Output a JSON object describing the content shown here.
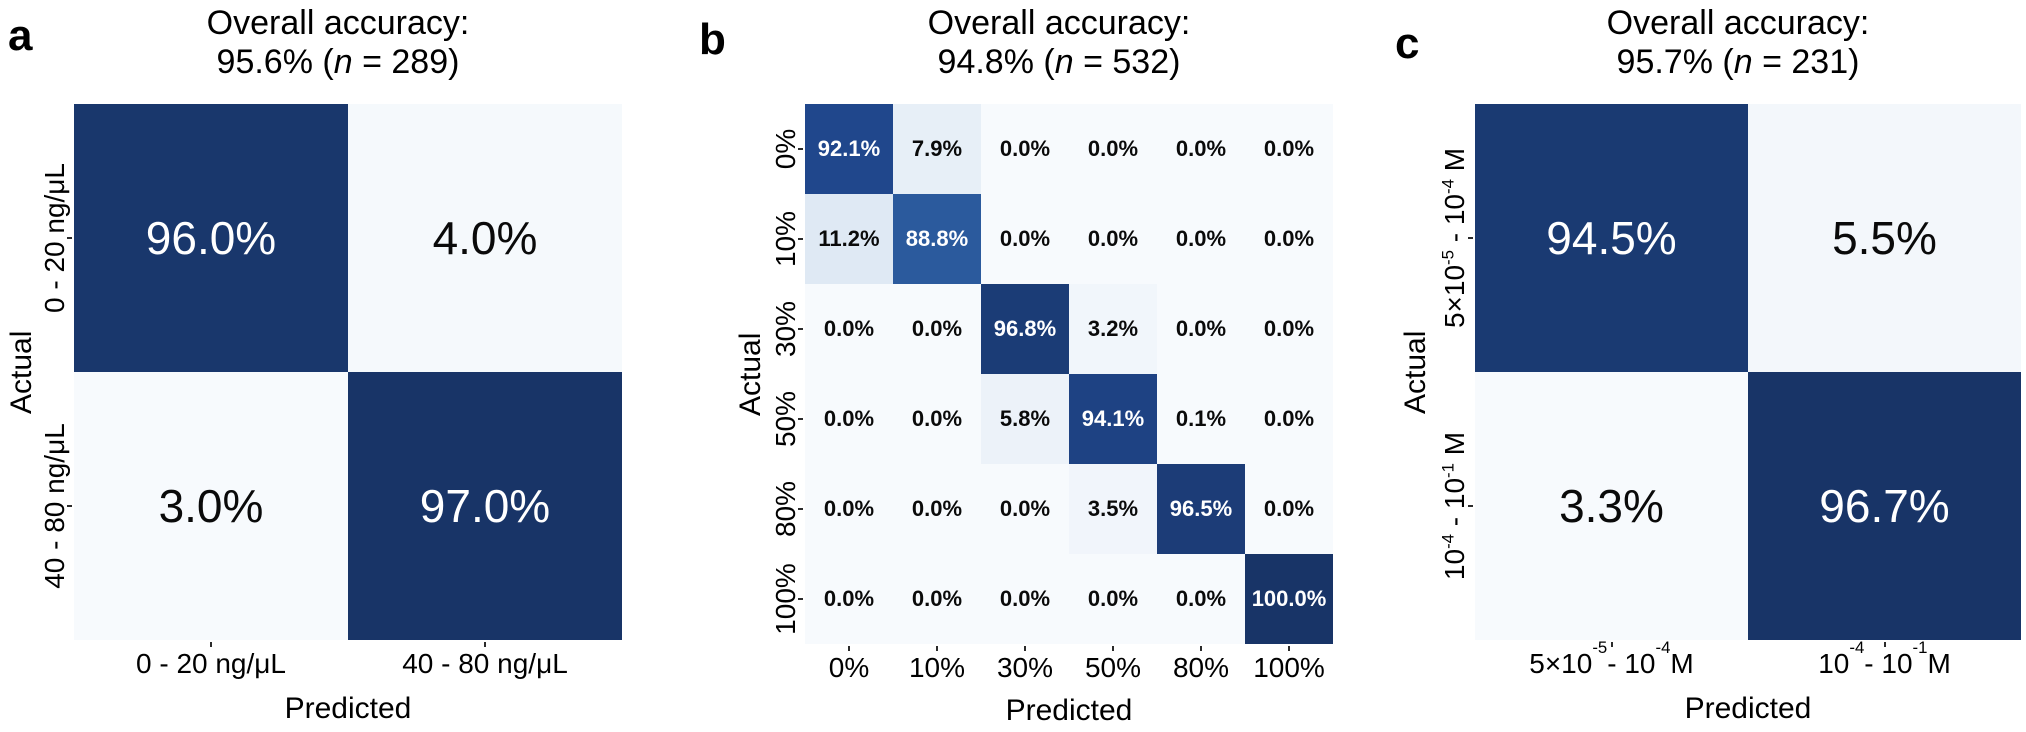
{
  "figure": {
    "kind": "confusion-matrix-figure",
    "background": "#ffffff",
    "axis_text_color": "#000000",
    "tick_color": "#2b2b2b",
    "value_text_light": "#ffffff",
    "value_text_dark": "#0a0a0a",
    "colormap_stops": [
      [
        0.0,
        "#f7fafd"
      ],
      [
        0.06,
        "#ecf2f9"
      ],
      [
        0.112,
        "#dfe9f4"
      ],
      [
        0.5,
        "#6fa0ce"
      ],
      [
        0.888,
        "#2b5a9d"
      ],
      [
        0.921,
        "#20478c"
      ],
      [
        1.0,
        "#183467"
      ]
    ]
  },
  "chart_data": [
    {
      "type": "heatmap",
      "panel_label": "a",
      "title": "Overall accuracy: 95.6% (n = 289)",
      "overall_accuracy": "95.6%",
      "n": 289,
      "title_lines": {
        "line1": "Overall accuracy:",
        "line2_pre": "95.6% (",
        "line2_italic": "n",
        "line2_post": " = 289)"
      },
      "xlabel": "Predicted",
      "ylabel": "Actual",
      "categories": [
        "0 - 20 ng/μL",
        "40 - 80 ng/μL"
      ],
      "matrix_percent": [
        [
          96.0,
          4.0
        ],
        [
          3.0,
          97.0
        ]
      ],
      "color_domain": [
        3.0,
        97.0
      ],
      "value_bold": false
    },
    {
      "type": "heatmap",
      "panel_label": "b",
      "title": "Overall accuracy: 94.8% (n = 532)",
      "overall_accuracy": "94.8%",
      "n": 532,
      "title_lines": {
        "line1": "Overall accuracy:",
        "line2_pre": "94.8% (",
        "line2_italic": "n",
        "line2_post": " = 532)"
      },
      "xlabel": "Predicted",
      "ylabel": "Actual",
      "categories": [
        "0%",
        "10%",
        "30%",
        "50%",
        "80%",
        "100%"
      ],
      "matrix_percent": [
        [
          92.1,
          7.9,
          0.0,
          0.0,
          0.0,
          0.0
        ],
        [
          11.2,
          88.8,
          0.0,
          0.0,
          0.0,
          0.0
        ],
        [
          0.0,
          0.0,
          96.8,
          3.2,
          0.0,
          0.0
        ],
        [
          0.0,
          0.0,
          5.8,
          94.1,
          0.1,
          0.0
        ],
        [
          0.0,
          0.0,
          0.0,
          3.5,
          96.5,
          0.0
        ],
        [
          0.0,
          0.0,
          0.0,
          0.0,
          0.0,
          100.0
        ]
      ],
      "color_domain": [
        0.0,
        100.0
      ],
      "value_bold": true
    },
    {
      "type": "heatmap",
      "panel_label": "c",
      "title": "Overall accuracy: 95.7% (n = 231)",
      "overall_accuracy": "95.7%",
      "n": 231,
      "title_lines": {
        "line1": "Overall accuracy:",
        "line2_pre": "95.7% (",
        "line2_italic": "n",
        "line2_post": " = 231)"
      },
      "xlabel": "Predicted",
      "ylabel": "Actual",
      "categories": [
        "5×10⁻⁵ - 10⁻⁴ M",
        "10⁻⁴ - 10⁻¹ M"
      ],
      "categories_display": [
        [
          {
            "t": "5×10"
          },
          {
            "sup": "-5"
          },
          {
            "t": " - 10"
          },
          {
            "sup": "-4"
          },
          {
            "t": " M"
          }
        ],
        [
          {
            "t": "10"
          },
          {
            "sup": "-4"
          },
          {
            "t": " - 10"
          },
          {
            "sup": "-1"
          },
          {
            "t": " M"
          }
        ]
      ],
      "matrix_percent": [
        [
          94.5,
          5.5
        ],
        [
          3.3,
          96.7
        ]
      ],
      "color_domain": [
        3.3,
        96.7
      ],
      "value_bold": false
    }
  ]
}
